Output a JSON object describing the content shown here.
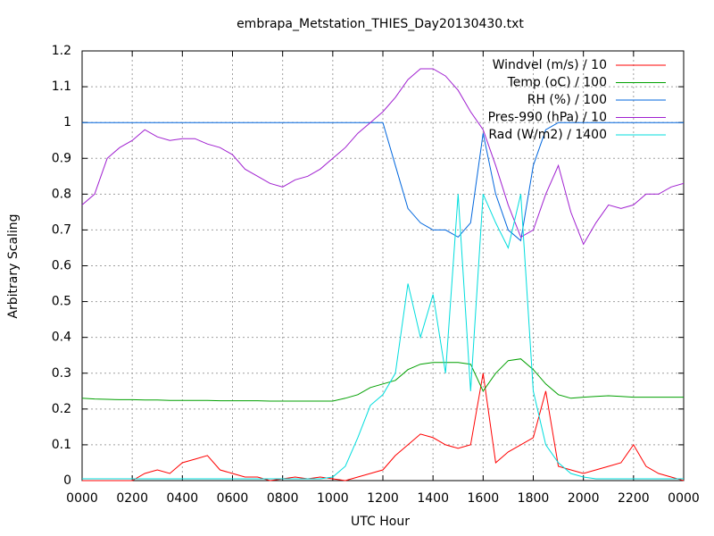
{
  "chart_data": {
    "type": "line",
    "title": "embrapa_Metstation_THIES_Day20130430.txt",
    "xlabel": "UTC Hour",
    "ylabel": "Arbitrary Scaling",
    "x": [
      0,
      0.5,
      1,
      1.5,
      2,
      2.5,
      3,
      3.5,
      4,
      4.5,
      5,
      5.5,
      6,
      6.5,
      7,
      7.5,
      8,
      8.5,
      9,
      9.5,
      10,
      10.5,
      11,
      11.5,
      12,
      12.5,
      13,
      13.5,
      14,
      14.5,
      15,
      15.5,
      16,
      16.5,
      17,
      17.5,
      18,
      18.5,
      19,
      19.5,
      20,
      20.5,
      21,
      21.5,
      22,
      22.5,
      23,
      23.5,
      24
    ],
    "series": [
      {
        "name": "Windvel (m/s) / 10",
        "color": "#ff0000",
        "values": [
          0,
          0,
          0,
          0,
          0,
          0.02,
          0.03,
          0.02,
          0.05,
          0.06,
          0.07,
          0.03,
          0.02,
          0.01,
          0.01,
          0,
          0.005,
          0.01,
          0.005,
          0.01,
          0.005,
          0,
          0.01,
          0.02,
          0.03,
          0.07,
          0.1,
          0.13,
          0.12,
          0.1,
          0.09,
          0.1,
          0.3,
          0.05,
          0.08,
          0.1,
          0.12,
          0.25,
          0.04,
          0.03,
          0.02,
          0.03,
          0.04,
          0.05,
          0.1,
          0.04,
          0.02,
          0.01,
          0
        ]
      },
      {
        "name": "Temp (oC) / 100",
        "color": "#00a000",
        "values": [
          0.23,
          0.228,
          0.227,
          0.226,
          0.226,
          0.225,
          0.225,
          0.224,
          0.224,
          0.224,
          0.224,
          0.223,
          0.223,
          0.223,
          0.223,
          0.222,
          0.222,
          0.222,
          0.222,
          0.222,
          0.222,
          0.23,
          0.24,
          0.26,
          0.27,
          0.28,
          0.31,
          0.325,
          0.33,
          0.33,
          0.33,
          0.325,
          0.25,
          0.3,
          0.335,
          0.34,
          0.31,
          0.27,
          0.24,
          0.23,
          0.233,
          0.235,
          0.237,
          0.235,
          0.233,
          0.233,
          0.233,
          0.233,
          0.233
        ]
      },
      {
        "name": "RH (%) / 100",
        "color": "#0066dd",
        "values": [
          1,
          1,
          1,
          1,
          1,
          1,
          1,
          1,
          1,
          1,
          1,
          1,
          1,
          1,
          1,
          1,
          1,
          1,
          1,
          1,
          1,
          1,
          1,
          1,
          1,
          0.88,
          0.76,
          0.72,
          0.7,
          0.7,
          0.68,
          0.72,
          0.97,
          0.8,
          0.7,
          0.67,
          0.88,
          0.98,
          1,
          1,
          1,
          1,
          1,
          1,
          1,
          1,
          1,
          1,
          1
        ]
      },
      {
        "name": "Pres-990 (hPa) / 10",
        "color": "#a020d0",
        "values": [
          0.77,
          0.8,
          0.9,
          0.93,
          0.95,
          0.98,
          0.96,
          0.95,
          0.955,
          0.955,
          0.94,
          0.93,
          0.91,
          0.87,
          0.85,
          0.83,
          0.82,
          0.84,
          0.85,
          0.87,
          0.9,
          0.93,
          0.97,
          1,
          1.03,
          1.07,
          1.12,
          1.15,
          1.15,
          1.13,
          1.09,
          1.03,
          0.98,
          0.88,
          0.77,
          0.68,
          0.7,
          0.8,
          0.88,
          0.75,
          0.66,
          0.72,
          0.77,
          0.76,
          0.77,
          0.8,
          0.8,
          0.82,
          0.83
        ]
      },
      {
        "name": "Rad (W/m2) / 1400",
        "color": "#00dddd",
        "values": [
          0.005,
          0.005,
          0.005,
          0.005,
          0.005,
          0.005,
          0.005,
          0.005,
          0.005,
          0.005,
          0.005,
          0.005,
          0.005,
          0.005,
          0.005,
          0.005,
          0.005,
          0.005,
          0.005,
          0.005,
          0.01,
          0.04,
          0.12,
          0.21,
          0.24,
          0.3,
          0.55,
          0.4,
          0.52,
          0.3,
          0.8,
          0.25,
          0.8,
          0.72,
          0.65,
          0.8,
          0.25,
          0.1,
          0.05,
          0.02,
          0.01,
          0.005,
          0.005,
          0.005,
          0.005,
          0.005,
          0.005,
          0.005,
          0.005
        ]
      }
    ],
    "xlim": [
      0,
      24
    ],
    "xticks": [
      {
        "value": 0,
        "label": "0000"
      },
      {
        "value": 2,
        "label": "0200"
      },
      {
        "value": 4,
        "label": "0400"
      },
      {
        "value": 6,
        "label": "0600"
      },
      {
        "value": 8,
        "label": "0800"
      },
      {
        "value": 10,
        "label": "1000"
      },
      {
        "value": 12,
        "label": "1200"
      },
      {
        "value": 14,
        "label": "1400"
      },
      {
        "value": 16,
        "label": "1600"
      },
      {
        "value": 18,
        "label": "1800"
      },
      {
        "value": 20,
        "label": "2000"
      },
      {
        "value": 22,
        "label": "2200"
      },
      {
        "value": 24,
        "label": "0000"
      }
    ],
    "ylim": [
      0,
      1.2
    ],
    "yticks": [
      0,
      0.1,
      0.2,
      0.3,
      0.4,
      0.5,
      0.6,
      0.7,
      0.8,
      0.9,
      1,
      1.1,
      1.2
    ],
    "grid": true,
    "legend": "upper right"
  }
}
